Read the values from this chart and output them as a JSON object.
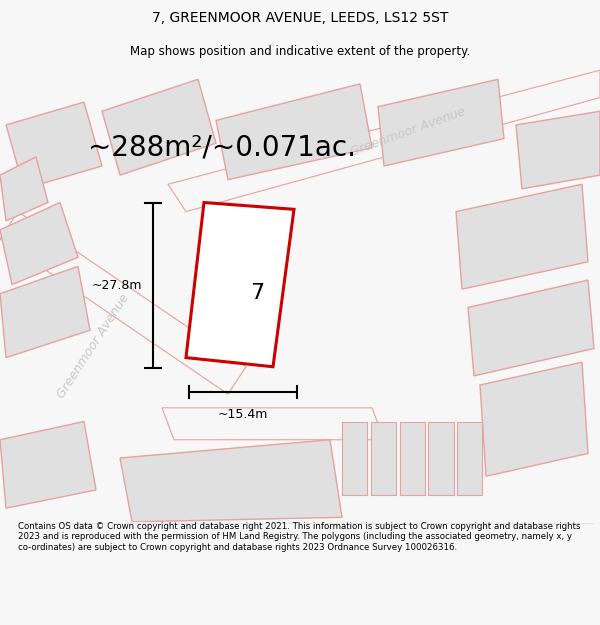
{
  "title": "7, GREENMOOR AVENUE, LEEDS, LS12 5ST",
  "subtitle": "Map shows position and indicative extent of the property.",
  "area_text": "~288m²/~0.071ac.",
  "number_label": "7",
  "dim_width": "~15.4m",
  "dim_height": "~27.8m",
  "street_label_diag1": "Greenmoor Avenue",
  "street_label_diag2": "Greenmoor Avenue",
  "footer": "Contains OS data © Crown copyright and database right 2021. This information is subject to Crown copyright and database rights 2023 and is reproduced with the permission of HM Land Registry. The polygons (including the associated geometry, namely x, y co-ordinates) are subject to Crown copyright and database rights 2023 Ordnance Survey 100026316.",
  "bg_color": "#f7f7f7",
  "map_bg": "#f7f7f7",
  "plot_fill": "#ffffff",
  "plot_stroke": "#cc0000",
  "neighbor_fill": "#e0e0e0",
  "neighbor_stroke": "#e8a0a0",
  "road_color": "#e8a0a0",
  "title_fontsize": 10,
  "subtitle_fontsize": 8.5,
  "area_fontsize": 20,
  "label_fontsize": 16,
  "dim_fontsize": 9,
  "street_fontsize": 9,
  "footer_fontsize": 6.2
}
